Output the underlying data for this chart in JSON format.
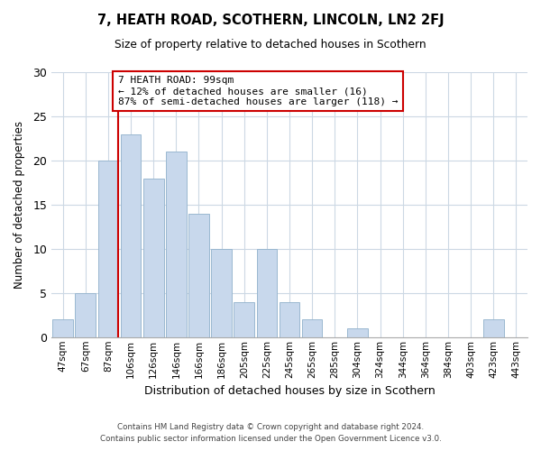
{
  "title": "7, HEATH ROAD, SCOTHERN, LINCOLN, LN2 2FJ",
  "subtitle": "Size of property relative to detached houses in Scothern",
  "xlabel": "Distribution of detached houses by size in Scothern",
  "ylabel": "Number of detached properties",
  "bar_labels": [
    "47sqm",
    "67sqm",
    "87sqm",
    "106sqm",
    "126sqm",
    "146sqm",
    "166sqm",
    "186sqm",
    "205sqm",
    "225sqm",
    "245sqm",
    "265sqm",
    "285sqm",
    "304sqm",
    "324sqm",
    "344sqm",
    "364sqm",
    "384sqm",
    "403sqm",
    "423sqm",
    "443sqm"
  ],
  "bar_values": [
    2,
    5,
    20,
    23,
    18,
    21,
    14,
    10,
    4,
    10,
    4,
    2,
    0,
    1,
    0,
    0,
    0,
    0,
    0,
    2,
    0
  ],
  "bar_color": "#c8d8ec",
  "bar_edge_color": "#9ab8d0",
  "vline_x_index": 2,
  "vline_color": "#cc0000",
  "ylim": [
    0,
    30
  ],
  "yticks": [
    0,
    5,
    10,
    15,
    20,
    25,
    30
  ],
  "annotation_title": "7 HEATH ROAD: 99sqm",
  "annotation_line1": "← 12% of detached houses are smaller (16)",
  "annotation_line2": "87% of semi-detached houses are larger (118) →",
  "annotation_box_color": "#ffffff",
  "annotation_box_edge": "#cc0000",
  "footer_line1": "Contains HM Land Registry data © Crown copyright and database right 2024.",
  "footer_line2": "Contains public sector information licensed under the Open Government Licence v3.0.",
  "background_color": "#ffffff",
  "grid_color": "#ccd8e4"
}
